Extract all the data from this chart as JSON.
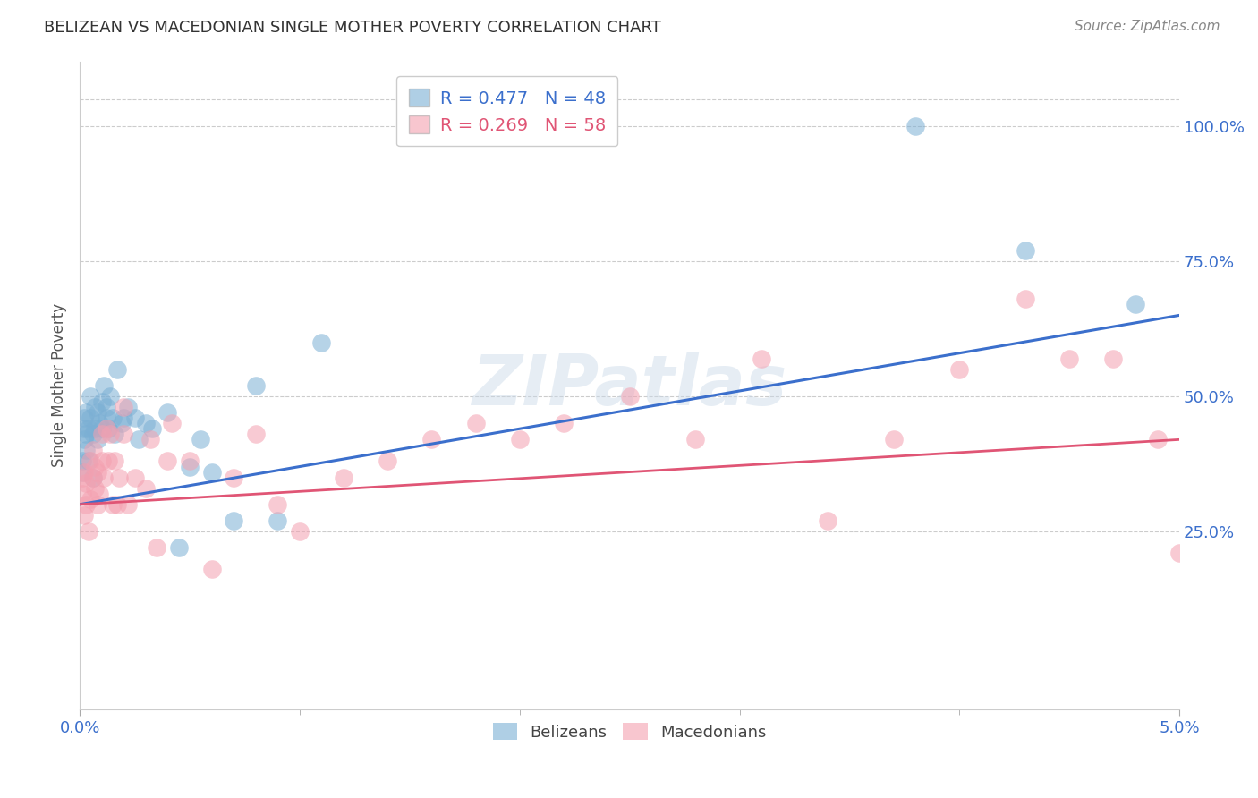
{
  "title": "BELIZEAN VS MACEDONIAN SINGLE MOTHER POVERTY CORRELATION CHART",
  "source": "Source: ZipAtlas.com",
  "ylabel": "Single Mother Poverty",
  "right_yticks": [
    "100.0%",
    "75.0%",
    "50.0%",
    "25.0%"
  ],
  "right_ytick_vals": [
    1.0,
    0.75,
    0.5,
    0.25
  ],
  "xlim": [
    0.0,
    0.05
  ],
  "ylim": [
    -0.08,
    1.12
  ],
  "blue_R": "R = 0.477",
  "blue_N": "N = 48",
  "pink_R": "R = 0.269",
  "pink_N": "N = 58",
  "blue_color": "#7BAFD4",
  "pink_color": "#F4A0B0",
  "blue_line_color": "#3B6FCC",
  "pink_line_color": "#E05575",
  "watermark": "ZIPatlas",
  "background_color": "#FFFFFF",
  "belizeans_x": [
    0.0001,
    0.0001,
    0.0002,
    0.0002,
    0.0002,
    0.0003,
    0.0003,
    0.0003,
    0.0004,
    0.0004,
    0.0005,
    0.0005,
    0.0006,
    0.0006,
    0.0007,
    0.0007,
    0.0008,
    0.0008,
    0.0009,
    0.001,
    0.001,
    0.0011,
    0.0012,
    0.0012,
    0.0013,
    0.0014,
    0.0015,
    0.0016,
    0.0017,
    0.0019,
    0.002,
    0.0022,
    0.0025,
    0.0027,
    0.003,
    0.0033,
    0.004,
    0.0045,
    0.005,
    0.0055,
    0.006,
    0.007,
    0.008,
    0.009,
    0.011,
    0.038,
    0.043,
    0.048
  ],
  "belizeans_y": [
    0.36,
    0.38,
    0.42,
    0.44,
    0.46,
    0.4,
    0.43,
    0.47,
    0.38,
    0.44,
    0.46,
    0.5,
    0.35,
    0.43,
    0.44,
    0.48,
    0.42,
    0.47,
    0.45,
    0.44,
    0.49,
    0.52,
    0.46,
    0.48,
    0.44,
    0.5,
    0.46,
    0.43,
    0.55,
    0.45,
    0.46,
    0.48,
    0.46,
    0.42,
    0.45,
    0.44,
    0.47,
    0.22,
    0.37,
    0.42,
    0.36,
    0.27,
    0.52,
    0.27,
    0.6,
    1.0,
    0.77,
    0.67
  ],
  "macedonians_x": [
    0.0001,
    0.0001,
    0.0002,
    0.0002,
    0.0003,
    0.0003,
    0.0004,
    0.0005,
    0.0005,
    0.0006,
    0.0006,
    0.0007,
    0.0007,
    0.0008,
    0.0008,
    0.0009,
    0.001,
    0.001,
    0.0011,
    0.0012,
    0.0013,
    0.0014,
    0.0015,
    0.0016,
    0.0017,
    0.0018,
    0.002,
    0.002,
    0.0022,
    0.0025,
    0.003,
    0.0032,
    0.0035,
    0.004,
    0.0042,
    0.005,
    0.006,
    0.007,
    0.008,
    0.009,
    0.01,
    0.012,
    0.014,
    0.016,
    0.018,
    0.02,
    0.022,
    0.025,
    0.028,
    0.031,
    0.034,
    0.037,
    0.04,
    0.043,
    0.045,
    0.047,
    0.049,
    0.05
  ],
  "macedonians_y": [
    0.32,
    0.35,
    0.28,
    0.36,
    0.3,
    0.34,
    0.25,
    0.38,
    0.31,
    0.35,
    0.4,
    0.33,
    0.37,
    0.3,
    0.36,
    0.32,
    0.38,
    0.43,
    0.35,
    0.44,
    0.38,
    0.43,
    0.3,
    0.38,
    0.3,
    0.35,
    0.43,
    0.48,
    0.3,
    0.35,
    0.33,
    0.42,
    0.22,
    0.38,
    0.45,
    0.38,
    0.18,
    0.35,
    0.43,
    0.3,
    0.25,
    0.35,
    0.38,
    0.42,
    0.45,
    0.42,
    0.45,
    0.5,
    0.42,
    0.57,
    0.27,
    0.42,
    0.55,
    0.68,
    0.57,
    0.57,
    0.42,
    0.21
  ]
}
